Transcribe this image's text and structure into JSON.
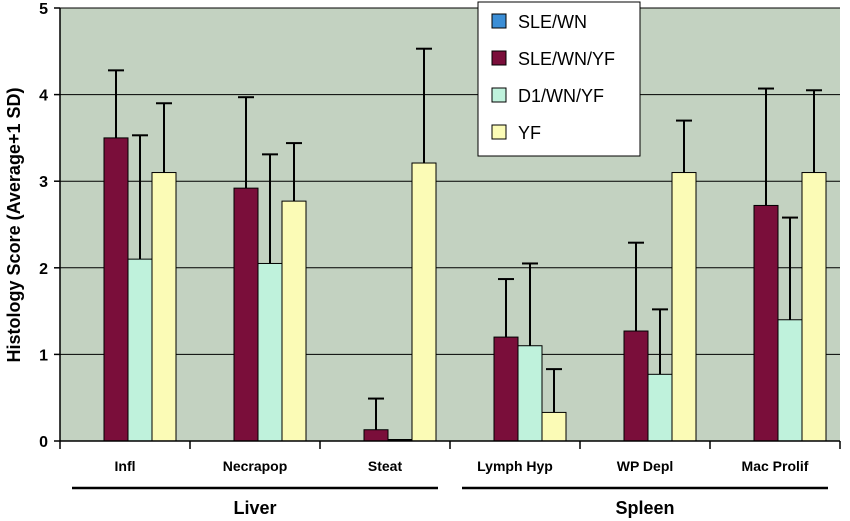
{
  "chart_data": {
    "type": "bar",
    "ylabel": "Histology Score (Average+1 SD)",
    "ylim": [
      0,
      5
    ],
    "yticks": [
      "0",
      "1",
      "2",
      "3",
      "4",
      "5"
    ],
    "grid": true,
    "legend_position": "top-center",
    "categories": [
      "Infl",
      "Necrapop",
      "Steat",
      "Lymph Hyp",
      "WP Depl",
      "Mac Prolif"
    ],
    "groups": [
      {
        "label": "Liver",
        "categories": [
          0,
          1,
          2
        ]
      },
      {
        "label": "Spleen",
        "categories": [
          3,
          4,
          5
        ]
      }
    ],
    "series": [
      {
        "name": "SLE/WN",
        "color": "#3b8ed6",
        "values": [
          0,
          0,
          0,
          0,
          0,
          0
        ],
        "errors": [
          0,
          0,
          0,
          0,
          0,
          0
        ]
      },
      {
        "name": "SLE/WN/YF",
        "color": "#7a0e3a",
        "values": [
          3.5,
          2.92,
          0.13,
          1.2,
          1.27,
          2.72
        ],
        "errors": [
          0.78,
          1.05,
          0.36,
          0.67,
          1.02,
          1.35
        ]
      },
      {
        "name": "D1/WN/YF",
        "color": "#bff2dc",
        "values": [
          2.1,
          2.05,
          0.0,
          1.1,
          0.77,
          1.4
        ],
        "errors": [
          1.43,
          1.26,
          0.0,
          0.95,
          0.75,
          1.18
        ]
      },
      {
        "name": "YF",
        "color": "#fbfbb6",
        "values": [
          3.1,
          2.77,
          3.21,
          0.33,
          3.1,
          3.1
        ],
        "errors": [
          0.8,
          0.67,
          1.32,
          0.5,
          0.6,
          0.95
        ]
      }
    ],
    "plot_background": "#c3d2c1"
  }
}
